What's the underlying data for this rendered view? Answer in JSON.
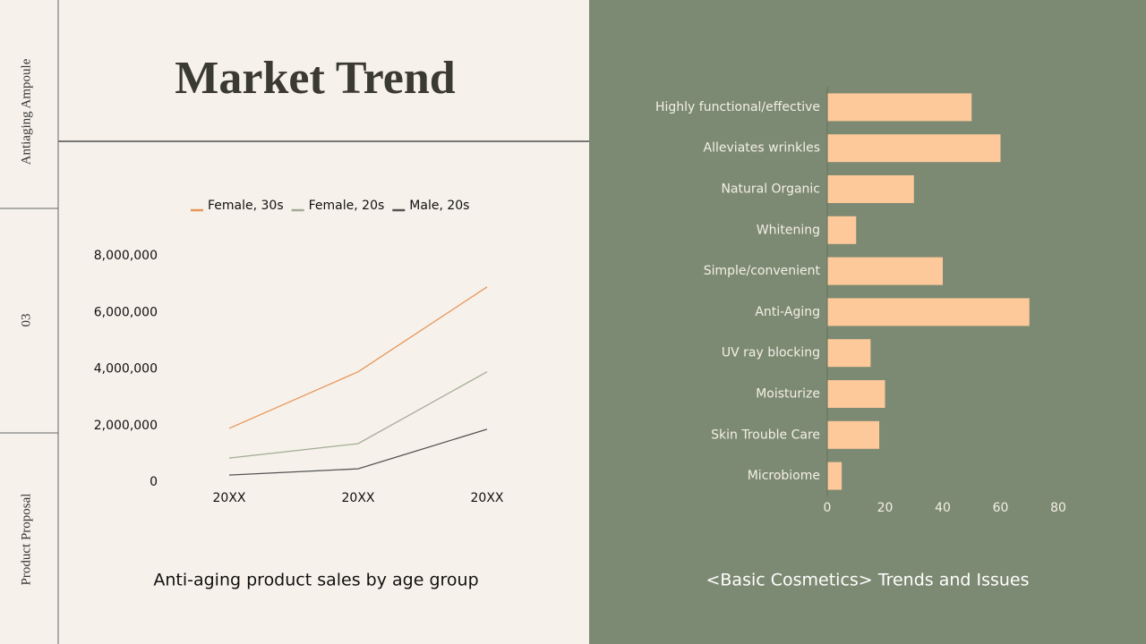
{
  "sidebar": {
    "section": "Antiaging Ampoule",
    "number": "03",
    "label": "Product Proposal"
  },
  "header": {
    "title": "Market Trend"
  },
  "chart_data": [
    {
      "type": "line",
      "title": "Anti-aging product sales by age group",
      "categories": [
        "20XX",
        "20XX",
        "20XX"
      ],
      "series": [
        {
          "name": "Female, 30s",
          "color": "#e8965a",
          "values": [
            1900000,
            3900000,
            6900000
          ]
        },
        {
          "name": "Female, 20s",
          "color": "#a3ad96",
          "values": [
            850000,
            1360000,
            3900000
          ]
        },
        {
          "name": "Male, 20s",
          "color": "#555555",
          "values": [
            250000,
            470000,
            1870000
          ]
        }
      ],
      "ylim": [
        0,
        8000000
      ],
      "yticks": [
        0,
        {
          "value": 2000000,
          "label": "2,000,000"
        },
        {
          "value": 4000000,
          "label": "4,000,000"
        },
        {
          "value": 6000000,
          "label": "6,000,000"
        },
        {
          "value": 8000000,
          "label": "8,000,000"
        }
      ],
      "legend": "top"
    },
    {
      "type": "barh",
      "title": "<Basic Cosmetics> Trends and Issues",
      "categories": [
        "Highly functional/effective",
        "Alleviates wrinkles",
        "Natural Organic",
        "Whitening",
        "Simple/convenient",
        "Anti-Aging",
        "UV ray blocking",
        "Moisturize",
        "Skin Trouble Care",
        "Microbiome"
      ],
      "values": [
        50,
        60,
        30,
        10,
        40,
        70,
        15,
        20,
        18,
        5
      ],
      "color": "#fdc99a",
      "xlim": [
        0,
        80
      ],
      "xticks": [
        0,
        20,
        40,
        60,
        80
      ]
    }
  ]
}
